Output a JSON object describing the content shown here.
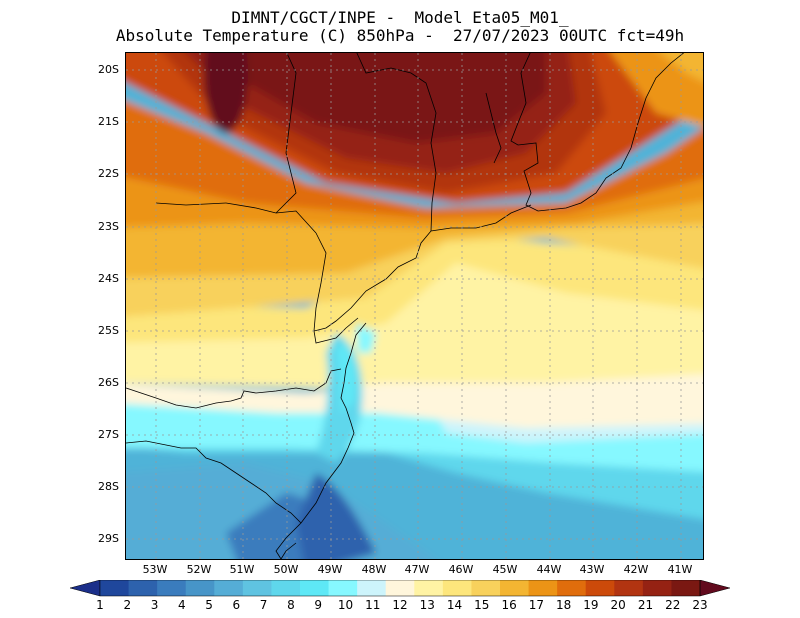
{
  "header": {
    "line1": "DIMNT/CGCT/INPE -  Model Eta05_M01_",
    "line2": "Absolute Temperature (C) 850hPa -  27/07/2023 00UTC fct=49h"
  },
  "axes": {
    "lat_labels": [
      "20S",
      "21S",
      "22S",
      "23S",
      "24S",
      "25S",
      "26S",
      "27S",
      "28S",
      "29S"
    ],
    "lon_labels": [
      "53W",
      "52W",
      "51W",
      "50W",
      "49W",
      "48W",
      "47W",
      "46W",
      "45W",
      "44W",
      "43W",
      "42W",
      "41W"
    ]
  },
  "colorbar": {
    "labels": [
      "1",
      "2",
      "3",
      "4",
      "5",
      "6",
      "7",
      "8",
      "9",
      "10",
      "11",
      "12",
      "13",
      "14",
      "15",
      "16",
      "17",
      "18",
      "19",
      "20",
      "21",
      "22",
      "23"
    ],
    "colors": [
      "#1b2f8a",
      "#1f479c",
      "#2d62ad",
      "#3a7cbd",
      "#4795c8",
      "#55add6",
      "#5fc3e1",
      "#5fd7ec",
      "#5ee8f6",
      "#86f8ff",
      "#cdf4fb",
      "#fff6dc",
      "#fff3a4",
      "#fde67c",
      "#f8d15c",
      "#f3b532",
      "#ec9416",
      "#e06d0c",
      "#cc4a0a",
      "#b23411",
      "#952213",
      "#7a1812",
      "#620a1e"
    ]
  },
  "map": {
    "field": "temperature_850hPa",
    "units": "C"
  }
}
